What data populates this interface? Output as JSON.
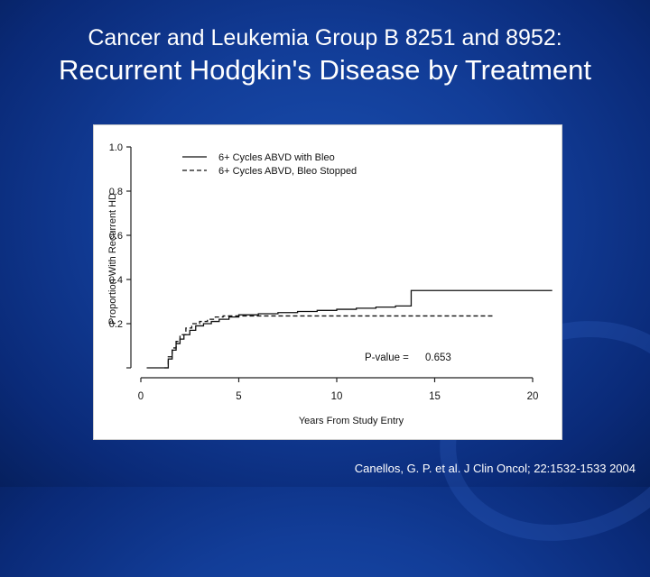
{
  "slide": {
    "title_line1": "Cancer and Leukemia Group B 8251 and 8952:",
    "title_line2": "Recurrent Hodgkin's Disease by Treatment",
    "citation": "Canellos, G. P. et al. J Clin Oncol; 22:1532-1533 2004"
  },
  "chart_data": {
    "type": "line",
    "title": "",
    "xlabel": "Years From Study Entry",
    "ylabel": "Proportion With Recurrent HD",
    "xlim": [
      0,
      21
    ],
    "ylim": [
      0,
      1.0
    ],
    "x_ticks": [
      "0",
      "5",
      "10",
      "15",
      "20"
    ],
    "y_ticks": [
      "0.2",
      "0.4",
      "0.6",
      "0.8",
      "1.0"
    ],
    "legend_position": "top-left",
    "annotation": {
      "label": "P-value =",
      "value": "0.653"
    },
    "series": [
      {
        "name": "6+ Cycles ABVD with Bleo",
        "style": "solid",
        "x": [
          0.3,
          1.2,
          1.4,
          1.6,
          1.8,
          2.0,
          2.2,
          2.5,
          2.8,
          3.2,
          3.6,
          4.0,
          4.5,
          5.0,
          6.0,
          7.0,
          8.0,
          9.0,
          10.0,
          11.0,
          12.0,
          13.0,
          13.8,
          15.0,
          17.0,
          19.0,
          20.0,
          21.0
        ],
        "y": [
          0.0,
          0.0,
          0.04,
          0.08,
          0.11,
          0.13,
          0.15,
          0.17,
          0.19,
          0.2,
          0.21,
          0.22,
          0.23,
          0.24,
          0.245,
          0.25,
          0.255,
          0.26,
          0.265,
          0.27,
          0.275,
          0.28,
          0.35,
          0.35,
          0.35,
          0.35,
          0.35,
          0.35
        ]
      },
      {
        "name": "6+ Cycles ABVD, Bleo Stopped",
        "style": "dashed",
        "x": [
          1.2,
          1.4,
          1.6,
          1.8,
          2.0,
          2.3,
          2.6,
          3.0,
          3.4,
          3.8,
          4.2,
          5.0,
          6.0,
          8.0,
          10.0,
          12.0,
          14.0,
          16.0,
          18.0
        ],
        "y": [
          0.0,
          0.05,
          0.09,
          0.12,
          0.15,
          0.18,
          0.2,
          0.21,
          0.22,
          0.23,
          0.235,
          0.235,
          0.235,
          0.235,
          0.235,
          0.235,
          0.235,
          0.235,
          0.235
        ]
      }
    ]
  }
}
